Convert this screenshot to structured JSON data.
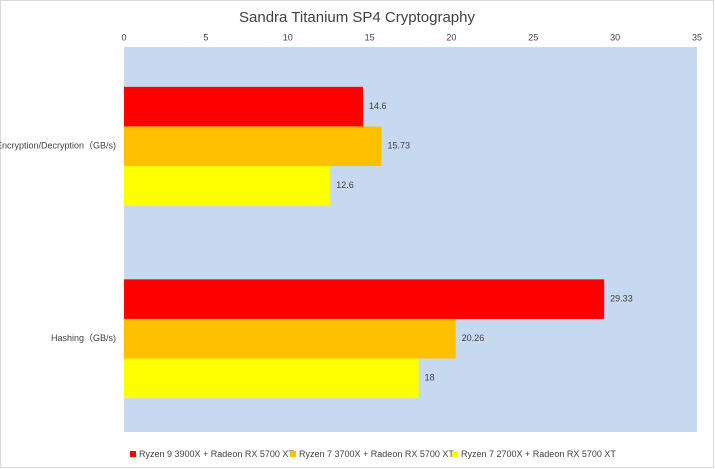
{
  "chart_data": {
    "type": "hbar",
    "title": "Sandra Titanium SP4 Cryptography",
    "categories": [
      "Encryption/Decryption（GB/s)",
      "Hashing（GB/s)"
    ],
    "series": [
      {
        "name": "Ryzen 9 3900X + Radeon RX 5700 XT",
        "color": "#ff0000",
        "values": [
          14.6,
          29.33
        ]
      },
      {
        "name": "Ryzen 7 3700X + Radeon RX 5700 XT",
        "color": "#ffc000",
        "values": [
          15.73,
          20.26
        ]
      },
      {
        "name": "Ryzen 7 2700X + Radeon RX 5700 XT",
        "color": "#ffff00",
        "values": [
          12.6,
          18
        ]
      }
    ],
    "xlim": [
      0,
      35
    ],
    "xticks": [
      0,
      5,
      10,
      15,
      20,
      25,
      30,
      35
    ],
    "plot_background": "#c6d9f0",
    "legend": "bottom"
  }
}
